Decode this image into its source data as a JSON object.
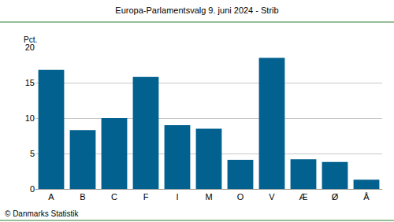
{
  "chart_data": {
    "type": "bar",
    "title": "Europa-Parlamentsvalg 9. juni 2024 - Strib",
    "ylabel": "Pct.",
    "source": "© Danmarks Statistik",
    "categories": [
      "A",
      "B",
      "C",
      "F",
      "I",
      "M",
      "O",
      "V",
      "Æ",
      "Ø",
      "Å"
    ],
    "values": [
      16.8,
      8.3,
      10.0,
      15.8,
      9.0,
      8.5,
      4.1,
      18.5,
      4.2,
      3.8,
      1.3
    ],
    "color": "#02618f",
    "ylim": [
      0,
      20
    ],
    "yticks": [
      0,
      5,
      10,
      15,
      20
    ],
    "grid": true
  }
}
